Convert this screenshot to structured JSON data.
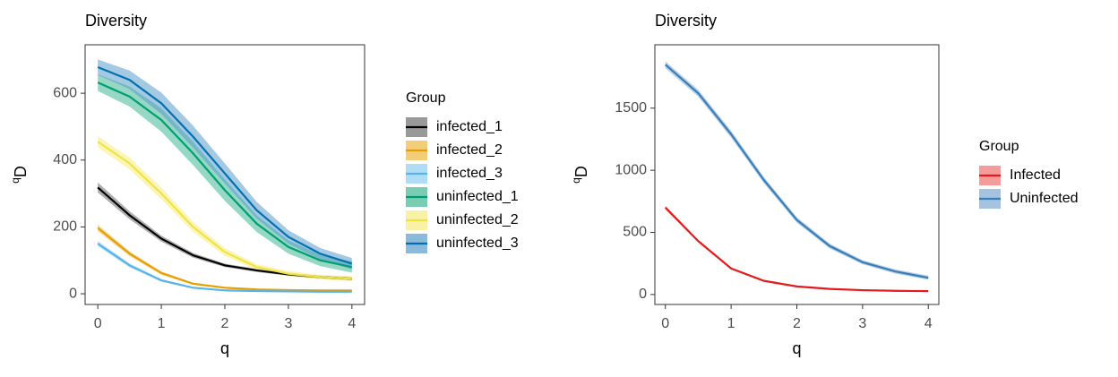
{
  "chart_data": [
    {
      "type": "line",
      "title": "Diversity",
      "x_label": "q",
      "y_label_sup": "q",
      "y_label": "D",
      "legend_title": "Group",
      "legend": "right",
      "x": [
        0,
        0.5,
        1,
        1.5,
        2,
        2.5,
        3,
        3.5,
        4
      ],
      "xlim": [
        -0.2,
        4.2
      ],
      "xticks": [
        0,
        1,
        2,
        3,
        4
      ],
      "ylim": [
        -32,
        745
      ],
      "yticks": [
        0,
        200,
        400,
        600
      ],
      "series": [
        {
          "name": "infected_1",
          "color": "#000000",
          "band_color": "#6e6e6e",
          "values": [
            318,
            235,
            165,
            115,
            85,
            70,
            58,
            50,
            45
          ],
          "lower": [
            303,
            223,
            156,
            108,
            80,
            65,
            54,
            46,
            40
          ],
          "upper": [
            333,
            247,
            174,
            122,
            90,
            75,
            62,
            54,
            50
          ]
        },
        {
          "name": "infected_2",
          "color": "#E69F00",
          "band_color": "#F0B840",
          "values": [
            197,
            120,
            62,
            30,
            18,
            13,
            11,
            10,
            10
          ],
          "lower": [
            187,
            113,
            57,
            27,
            16,
            11,
            9,
            8,
            8
          ],
          "upper": [
            207,
            127,
            67,
            33,
            20,
            15,
            13,
            12,
            12
          ]
        },
        {
          "name": "infected_3",
          "color": "#56B4E9",
          "band_color": "#8ECFF2",
          "values": [
            150,
            85,
            40,
            18,
            10,
            8,
            7,
            6,
            6
          ],
          "lower": [
            142,
            79,
            36,
            16,
            9,
            7,
            6,
            5,
            5
          ],
          "upper": [
            158,
            91,
            44,
            20,
            11,
            9,
            8,
            7,
            7
          ]
        },
        {
          "name": "uninfected_1",
          "color": "#009E73",
          "band_color": "#40B893",
          "values": [
            632,
            590,
            520,
            420,
            310,
            210,
            140,
            100,
            80
          ],
          "lower": [
            607,
            560,
            485,
            385,
            278,
            185,
            120,
            83,
            63
          ],
          "upper": [
            657,
            620,
            555,
            455,
            342,
            235,
            160,
            117,
            97
          ]
        },
        {
          "name": "uninfected_2",
          "color": "#F0E442",
          "band_color": "#F5EC80",
          "values": [
            455,
            390,
            300,
            200,
            125,
            80,
            60,
            50,
            45
          ],
          "lower": [
            438,
            372,
            282,
            185,
            113,
            71,
            52,
            43,
            38
          ],
          "upper": [
            472,
            408,
            318,
            215,
            137,
            89,
            68,
            57,
            52
          ]
        },
        {
          "name": "uninfected_3",
          "color": "#0072B2",
          "band_color": "#5A9CCB",
          "values": [
            678,
            640,
            570,
            470,
            360,
            250,
            170,
            120,
            90
          ],
          "lower": [
            655,
            612,
            538,
            437,
            330,
            225,
            150,
            103,
            73
          ],
          "upper": [
            701,
            668,
            602,
            503,
            390,
            275,
            190,
            137,
            107
          ]
        }
      ]
    },
    {
      "type": "line",
      "title": "Diversity",
      "x_label": "q",
      "y_label_sup": "q",
      "y_label": "D",
      "legend_title": "Group",
      "legend": "right",
      "x": [
        0,
        0.5,
        1,
        1.5,
        2,
        2.5,
        3,
        3.5,
        4
      ],
      "xlim": [
        -0.16,
        4.16
      ],
      "xticks": [
        0,
        1,
        2,
        3,
        4
      ],
      "ylim": [
        -80,
        2010
      ],
      "yticks": [
        0,
        500,
        1000,
        1500
      ],
      "series": [
        {
          "name": "Infected",
          "color": "#E41A1C",
          "band_color": "#F07072",
          "values": [
            700,
            430,
            210,
            110,
            65,
            45,
            35,
            30,
            27
          ],
          "lower": [
            685,
            420,
            203,
            105,
            61,
            42,
            32,
            27,
            24
          ],
          "upper": [
            715,
            440,
            217,
            115,
            69,
            48,
            38,
            33,
            30
          ]
        },
        {
          "name": "Uninfected",
          "color": "#377EB8",
          "band_color": "#7FAAD4",
          "values": [
            1850,
            1620,
            1290,
            920,
            600,
            390,
            260,
            185,
            135
          ],
          "lower": [
            1822,
            1592,
            1262,
            895,
            578,
            370,
            243,
            168,
            118
          ],
          "upper": [
            1878,
            1648,
            1318,
            945,
            622,
            410,
            277,
            202,
            152
          ]
        }
      ]
    }
  ]
}
